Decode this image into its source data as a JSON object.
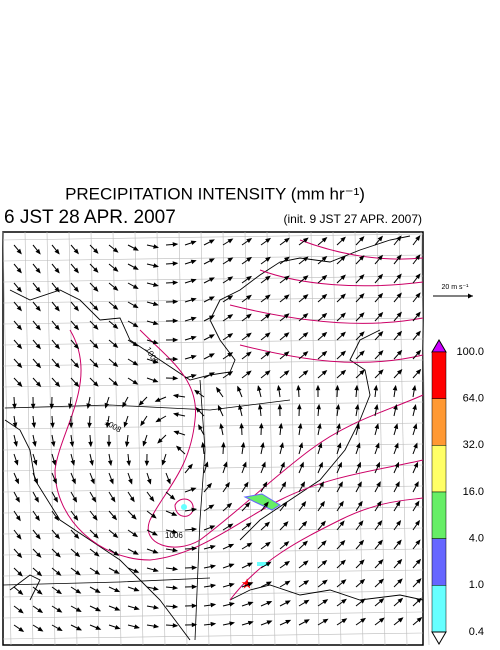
{
  "header": {
    "title": "PRECIPITATION INTENSITY (mm hr⁻¹)",
    "valid_time": "6 JST 28 APR. 2007",
    "init_time": "(init. 9 JST 27 APR. 2007)"
  },
  "reference_vector": {
    "label": "20 m s⁻¹"
  },
  "contour_labels": [
    "1006",
    "1008",
    "1006"
  ],
  "colorbar": {
    "labels": [
      "100.0",
      "64.0",
      "32.0",
      "16.0",
      "4.0",
      "1.0",
      "0.4"
    ],
    "colors": [
      "#ff0000",
      "#ff9933",
      "#ffff66",
      "#66ee66",
      "#6666ff",
      "#66ffff"
    ],
    "over_color": "#cc00ff",
    "under_color": "#ffffff"
  }
}
